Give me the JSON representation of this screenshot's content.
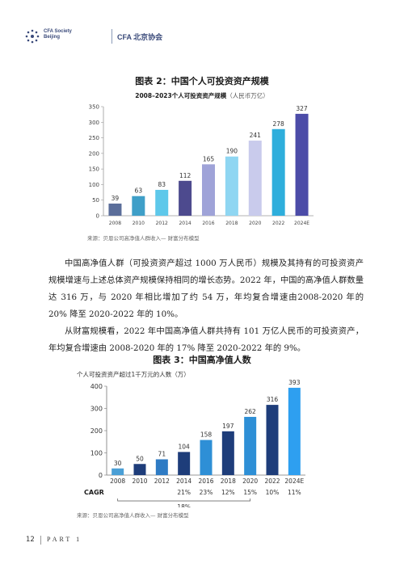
{
  "header": {
    "logo_text": "CFA Society Beijing",
    "org_name": "CFA 北京协会"
  },
  "figure2": {
    "title": "图表 2：中国个人可投资资产规模",
    "subtitle": "2008–2023个人可投资资产规模",
    "unit": "（人民币万亿）",
    "source": "来源：贝恩公司高净值人群收入— 财富分布模型"
  },
  "figure3": {
    "title": "图表 3：中国高净值人数",
    "subtitle": "个人可投资资产超过1千万元的人数（万）",
    "cagr_label": "CAGR",
    "cagr_overall": "18%",
    "source": "来源：贝恩公司高净值人群收入— 财富分布模型"
  },
  "body_text": {
    "p1": "中国高净值人群（可投资资产超过 1000 万人民币）规模及其持有的可投资资产规模增速与上述总体资产规模保持相同的增长态势。2022 年，中国的高净值人群数量达 316 万，与 2020 年相比增加了约 54 万，年均复合增速由2008-2020 年的 20% 降至 2020-2022 年的 10%。",
    "p2": "从财富规模看，2022 年中国高净值人群共持有 101 万亿人民币的可投资资产，年均复合增速由 2008-2020 年的 17% 降至 2020-2022 年的 9%。"
  },
  "footer": {
    "page_number": "12",
    "part_label": "PART 1"
  },
  "chart_data": [
    {
      "type": "bar",
      "categories": [
        "2008",
        "2010",
        "2012",
        "2014",
        "2016",
        "2018",
        "2020",
        "2022",
        "2024E"
      ],
      "values": [
        39,
        63,
        83,
        112,
        165,
        190,
        241,
        278,
        327
      ],
      "title": "2008–2023个人可投资资产规模",
      "ylabel": "（人民币万亿）",
      "ylim": [
        0,
        350
      ],
      "yticks": [
        0,
        50,
        100,
        150,
        200,
        250,
        300,
        350
      ],
      "colors": [
        "#5b6e9a",
        "#3f9fc8",
        "#5ec8ea",
        "#4d4a8e",
        "#9fa3d8",
        "#8fd6f2",
        "#c9cbec",
        "#2eaedc",
        "#4c4ca8"
      ],
      "grid": false
    },
    {
      "type": "bar",
      "categories": [
        "2008",
        "2010",
        "2012",
        "2014",
        "2016",
        "2018",
        "2020",
        "2022",
        "2024E"
      ],
      "values": [
        30,
        50,
        71,
        104,
        158,
        197,
        262,
        316,
        393
      ],
      "cagr": [
        "",
        "",
        "",
        "21%",
        "23%",
        "12%",
        "15%",
        "10%",
        "11%"
      ],
      "title": "个人可投资资产超过1千万元的人数（万）",
      "ylim": [
        0,
        400
      ],
      "yticks": [
        0,
        100,
        200,
        300,
        400
      ],
      "colors": [
        "#4a9fd6",
        "#1e3d7a",
        "#2e7bc4",
        "#1e3d7a",
        "#2e8fd6",
        "#1e3d7a",
        "#2e8fd6",
        "#1e3d7a",
        "#2e9ff0"
      ],
      "grid": false
    }
  ]
}
